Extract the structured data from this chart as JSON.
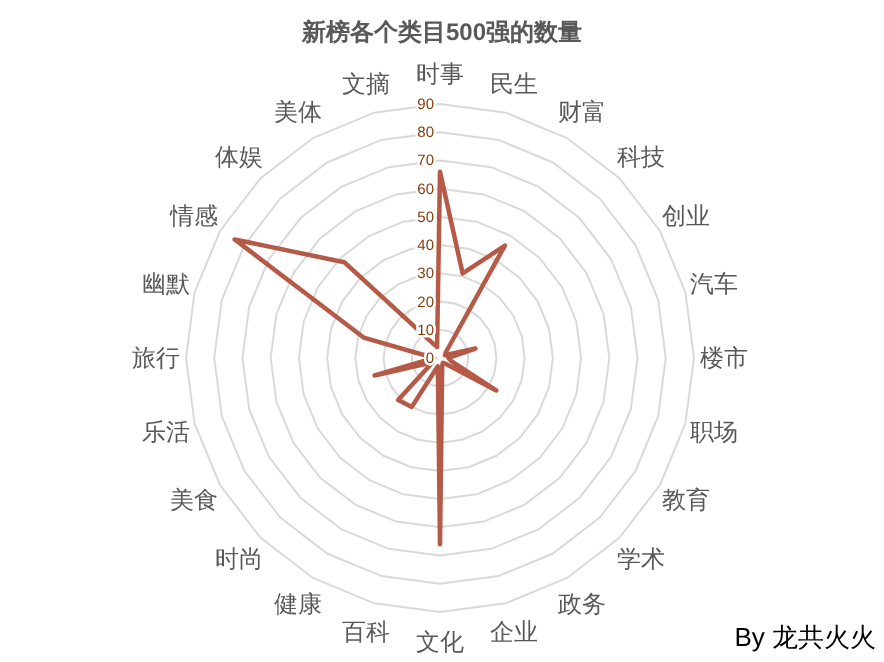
{
  "chart_data": {
    "type": "radar",
    "title": "新榜各个类目500强的数量",
    "categories": [
      "时事",
      "民生",
      "财富",
      "科技",
      "创业",
      "汽车",
      "楼市",
      "职场",
      "教育",
      "学术",
      "政务",
      "企业",
      "文化",
      "百科",
      "健康",
      "时尚",
      "美食",
      "乐活",
      "旅行",
      "幽默",
      "情感",
      "体娱",
      "美体",
      "文摘"
    ],
    "series": [
      {
        "color": "#b45a46",
        "values": [
          66,
          31,
          46,
          3,
          2,
          13,
          3,
          4,
          23,
          3,
          2,
          3,
          66,
          3,
          20,
          21,
          3,
          24,
          2,
          28,
          84,
          48,
          7,
          4
        ]
      }
    ],
    "ylim": [
      0,
      90
    ],
    "yticks": [
      0,
      10,
      20,
      30,
      40,
      50,
      60,
      70,
      80,
      90
    ],
    "grid": true,
    "annotations": [
      "By 龙共火火"
    ]
  }
}
